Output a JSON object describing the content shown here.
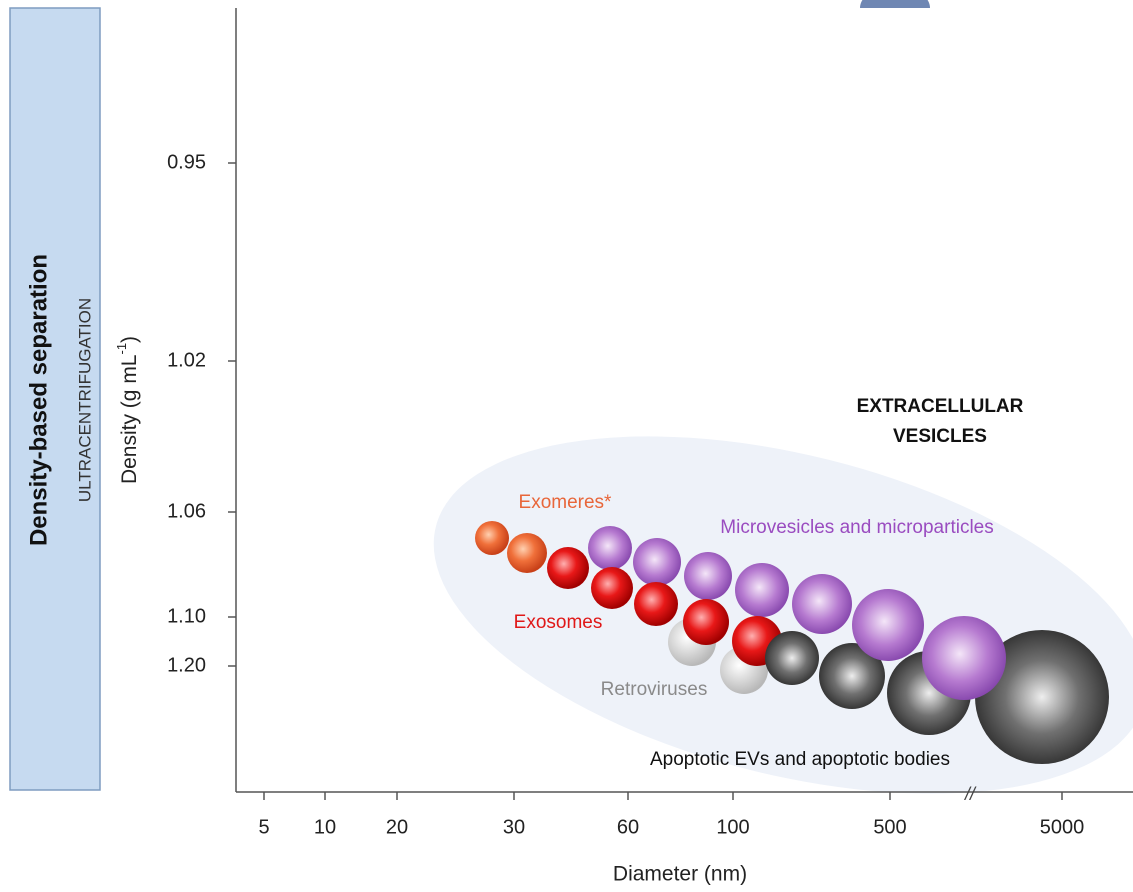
{
  "side_panel": {
    "title": "Density-based separation",
    "subtitle": "ULTRACENTRIFUGATION"
  },
  "y_axis": {
    "label": "Density (g mL",
    "superscript": "-1",
    "suffix": ")",
    "ticks": [
      "0.95",
      "1.02",
      "1.06",
      "1.10",
      "1.20"
    ]
  },
  "x_axis": {
    "label": "Diameter (nm)",
    "ticks": [
      "5",
      "10",
      "20",
      "30",
      "60",
      "100",
      "500",
      "5000"
    ],
    "break": "//"
  },
  "annotations": {
    "group": [
      "EXTRACELLULAR",
      "VESICLES"
    ],
    "exomeres": "Exomeres*",
    "microvesicles": "Microvesicles and microparticles",
    "exosomes": "Exosomes",
    "retroviruses": "Retroviruses",
    "apoptotic": "Apoptotic EVs and apoptotic bodies"
  }
}
